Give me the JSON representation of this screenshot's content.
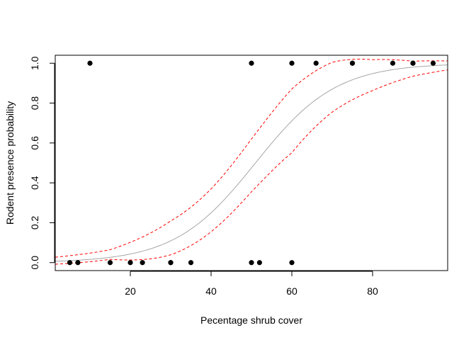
{
  "chart_data": {
    "type": "scatter",
    "title": "",
    "xlabel": "Pecentage shrub cover",
    "ylabel": "Rodent presence probability",
    "xlim": [
      1.4,
      98.6
    ],
    "ylim": [
      -0.04,
      1.04
    ],
    "xticks": [
      20,
      40,
      60,
      80
    ],
    "yticks": [
      0.0,
      0.2,
      0.4,
      0.6,
      0.8,
      1.0
    ],
    "ytick_labels": [
      "0.0",
      "0.2",
      "0.4",
      "0.6",
      "0.8",
      "1.0"
    ],
    "grid": false,
    "points": {
      "x": [
        5,
        7,
        10,
        15,
        20,
        23,
        30,
        30,
        35,
        50,
        50,
        52,
        60,
        60,
        66,
        75,
        75,
        85,
        90,
        90,
        95
      ],
      "y": [
        0,
        0,
        1,
        0,
        0,
        0,
        0,
        0,
        0,
        0,
        1,
        0,
        0,
        1,
        1,
        1,
        1,
        1,
        1,
        1,
        1
      ],
      "color": "#000000"
    },
    "fit": {
      "type": "logistic",
      "intercept": -5.1,
      "slope": 0.1,
      "color": "#a6a6a6",
      "band_color": "#ff0000",
      "band_lower_offset": [
        [
          1.4,
          -0.015
        ],
        [
          15,
          -0.01
        ],
        [
          30,
          -0.07
        ],
        [
          40,
          -0.095
        ],
        [
          50,
          -0.12
        ],
        [
          60,
          -0.16
        ],
        [
          70,
          -0.115
        ],
        [
          80,
          -0.085
        ],
        [
          90,
          -0.045
        ],
        [
          98.6,
          -0.025
        ]
      ],
      "band_upper_offset": [
        [
          1.4,
          0.02
        ],
        [
          15,
          0.038
        ],
        [
          30,
          0.1
        ],
        [
          40,
          0.12
        ],
        [
          50,
          0.145
        ],
        [
          60,
          0.16
        ],
        [
          70,
          0.135
        ],
        [
          80,
          0.07
        ],
        [
          90,
          0.03
        ],
        [
          98.6,
          0.02
        ]
      ]
    }
  }
}
